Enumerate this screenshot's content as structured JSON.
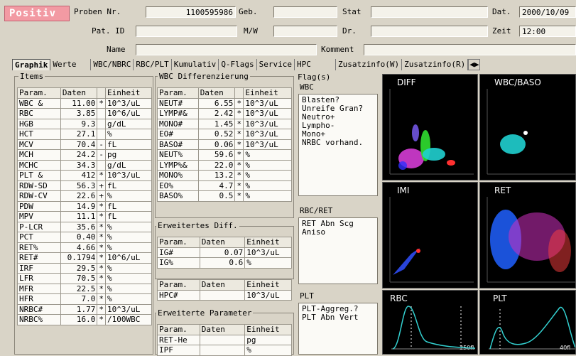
{
  "header": {
    "positiv": "Positiv",
    "proben_lbl": "Proben Nr.",
    "proben": "1100595986",
    "geb_lbl": "Geb.",
    "stat_lbl": "Stat",
    "dat_lbl": "Dat.",
    "dat": "2000/10/09",
    "patid_lbl": "Pat. ID",
    "mw_lbl": "M/W",
    "dr_lbl": "Dr.",
    "zeit_lbl": "Zeit",
    "zeit": "12:00",
    "name_lbl": "Name",
    "komment_lbl": "Komment"
  },
  "tabs": [
    "Graphik",
    "Werte",
    "WBC/NBRC",
    "RBC/PLT",
    "Kumulativ",
    "Q-Flags",
    "Service",
    "HPC",
    "Zusatzinfo(W)",
    "Zusatzinfo(R)"
  ],
  "items": {
    "title": "Items",
    "headers": [
      "Param.",
      "Daten",
      "",
      "Einheit"
    ],
    "rows": [
      [
        "WBC   &",
        "11.00",
        "*",
        "10^3/uL"
      ],
      [
        "RBC",
        "3.85",
        "",
        "10^6/uL"
      ],
      [
        "HGB",
        "9.3",
        "",
        "g/dL"
      ],
      [
        "HCT",
        "27.1",
        "",
        "%"
      ],
      [
        "MCV",
        "70.4",
        "-",
        "fL"
      ],
      [
        "MCH",
        "24.2",
        "-",
        "pg"
      ],
      [
        "MCHC",
        "34.3",
        "",
        "g/dL"
      ],
      [
        "PLT   &",
        "412",
        "*",
        "10^3/uL"
      ],
      [
        "RDW-SD",
        "56.3",
        "+",
        "fL"
      ],
      [
        "RDW-CV",
        "22.6",
        "+",
        "%"
      ],
      [
        "PDW",
        "14.9",
        "*",
        "fL"
      ],
      [
        "MPV",
        "11.1",
        "*",
        "fL"
      ],
      [
        "P-LCR",
        "35.6",
        "*",
        "%"
      ],
      [
        "PCT",
        "0.40",
        "*",
        "%"
      ],
      [
        "RET%",
        "4.66",
        "*",
        "%"
      ],
      [
        "RET#",
        "0.1794",
        "*",
        "10^6/uL"
      ],
      [
        "IRF",
        "29.5",
        "*",
        "%"
      ],
      [
        "LFR",
        "70.5",
        "*",
        "%"
      ],
      [
        "MFR",
        "22.5",
        "*",
        "%"
      ],
      [
        "HFR",
        "7.0",
        "*",
        "%"
      ],
      [
        "NRBC#",
        "1.77",
        "*",
        "10^3/uL"
      ],
      [
        "NRBC%",
        "16.0",
        "*",
        "/100WBC"
      ]
    ]
  },
  "wbc": {
    "title": "WBC Differenzierung",
    "headers": [
      "Param.",
      "Daten",
      "",
      "Einheit"
    ],
    "rows": [
      [
        "NEUT#",
        "6.55",
        "*",
        "10^3/uL"
      ],
      [
        "LYMP#&",
        "2.42",
        "*",
        "10^3/uL"
      ],
      [
        "MONO#",
        "1.45",
        "*",
        "10^3/uL"
      ],
      [
        "EO#",
        "0.52",
        "*",
        "10^3/uL"
      ],
      [
        "BASO#",
        "0.06",
        "*",
        "10^3/uL"
      ],
      [
        "NEUT%",
        "59.6",
        "*",
        "%"
      ],
      [
        "LYMP%&",
        "22.0",
        "*",
        "%"
      ],
      [
        "MONO%",
        "13.2",
        "*",
        "%"
      ],
      [
        "EO%",
        "4.7",
        "*",
        "%"
      ],
      [
        "BASO%",
        "0.5",
        "*",
        "%"
      ]
    ]
  },
  "ediff": {
    "title": "Erweitertes Diff.",
    "headers": [
      "Param.",
      "Daten",
      "Einheit"
    ],
    "rows": [
      [
        "IG#",
        "0.07",
        "10^3/uL"
      ],
      [
        "IG%",
        "0.6",
        "%"
      ]
    ]
  },
  "hpc": {
    "headers": [
      "Param.",
      "Daten",
      "Einheit"
    ],
    "rows": [
      [
        "HPC#",
        "",
        "10^3/uL"
      ]
    ]
  },
  "eparam": {
    "title": "Erweiterte Parameter",
    "headers": [
      "Param.",
      "Daten",
      "Einheit"
    ],
    "rows": [
      [
        "RET-He",
        "",
        "pg"
      ],
      [
        "IPF",
        "",
        "%"
      ]
    ]
  },
  "flags": {
    "title": "Flag(s)",
    "wbc_lbl": "WBC",
    "wbc_text": "Blasten?\nUnreife Gran?\nNeutro+\nLympho-\nMono+\nNRBC vorhand.",
    "rbcret_lbl": "RBC/RET",
    "rbcret_text": "RET Abn Scg\nAniso",
    "plt_lbl": "PLT",
    "plt_text": "PLT-Aggreg.?\nPLT Abn Vert"
  },
  "plots": {
    "diff": "DIFF",
    "wbcbaso": "WBC/BASO",
    "imi": "IMI",
    "ret": "RET",
    "rbc": "RBC",
    "plt": "PLT",
    "rbc_axis": "250fl",
    "plt_axis": "40fl"
  },
  "colors": {
    "badge": "#f29aa3",
    "plot_bg": "#000000",
    "hist": "#33d0d0"
  }
}
